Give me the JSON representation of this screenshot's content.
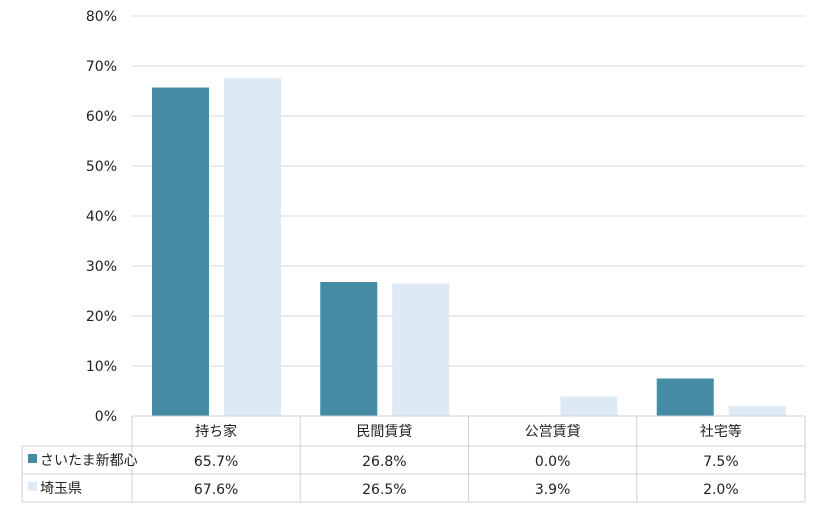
{
  "chart_data": {
    "type": "bar",
    "categories": [
      "持ち家",
      "民間賃貸",
      "公営賃貸",
      "社宅等"
    ],
    "series": [
      {
        "name": "さいたま新都心",
        "values": [
          65.7,
          26.8,
          0.0,
          7.5
        ],
        "labels": [
          "65.7%",
          "26.8%",
          "0.0%",
          "7.5%"
        ],
        "color": "#468BA5"
      },
      {
        "name": "埼玉県",
        "values": [
          67.6,
          26.5,
          3.9,
          2.0
        ],
        "labels": [
          "67.6%",
          "26.5%",
          "3.9%",
          "2.0%"
        ],
        "color": "#DDE9F5"
      }
    ],
    "ylim": [
      0,
      80
    ],
    "yticks": [
      "0%",
      "10%",
      "20%",
      "30%",
      "40%",
      "50%",
      "60%",
      "70%",
      "80%"
    ],
    "grid": true,
    "legend": "data-table-left"
  }
}
